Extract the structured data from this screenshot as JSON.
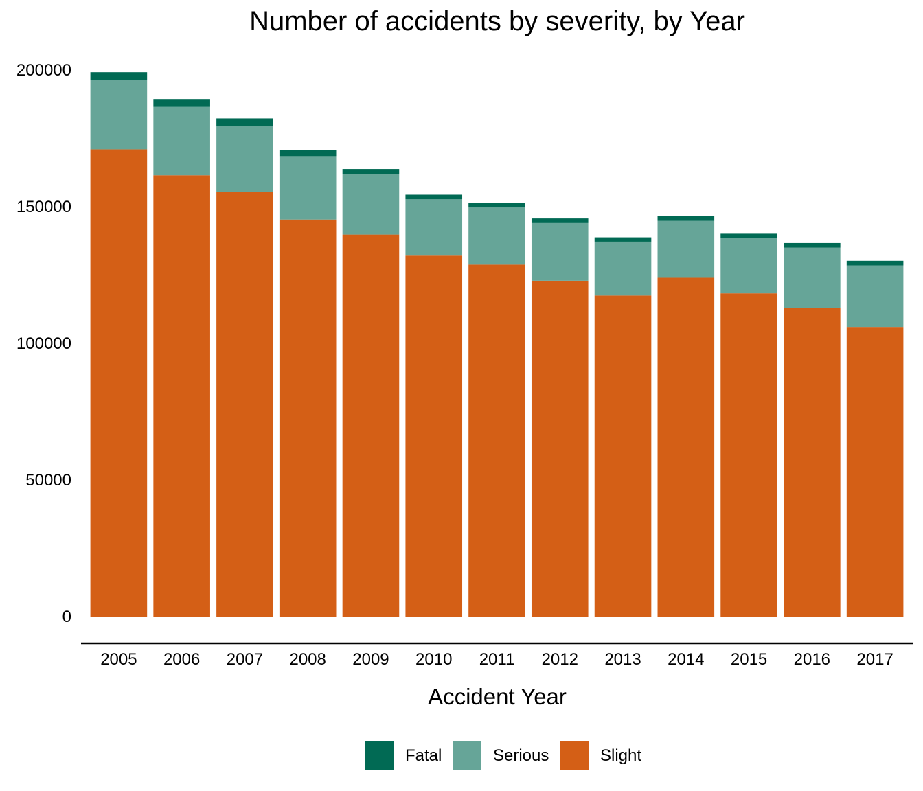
{
  "chart_data": {
    "type": "bar",
    "stacked": true,
    "title": "Number of accidents by severity, by Year",
    "xlabel": "Accident Year",
    "ylabel": "",
    "ylim": [
      0,
      200000
    ],
    "yticks": [
      0,
      50000,
      100000,
      150000,
      200000
    ],
    "ytick_labels": [
      "0",
      "50000",
      "100000",
      "150000",
      "200000"
    ],
    "grid": false,
    "legend_position": "bottom",
    "categories": [
      "2005",
      "2006",
      "2007",
      "2008",
      "2009",
      "2010",
      "2011",
      "2012",
      "2013",
      "2014",
      "2015",
      "2016",
      "2017"
    ],
    "series": [
      {
        "name": "Slight",
        "color": "#D45F16",
        "values": [
          171000,
          161500,
          155500,
          145300,
          139800,
          132100,
          128800,
          122900,
          117500,
          124000,
          118300,
          113000,
          106000
        ]
      },
      {
        "name": "Serious",
        "color": "#66A598",
        "values": [
          25300,
          25000,
          24100,
          23200,
          22000,
          20600,
          20900,
          21100,
          19700,
          20800,
          20200,
          22000,
          22500
        ]
      },
      {
        "name": "Fatal",
        "color": "#016A54",
        "values": [
          2900,
          2900,
          2700,
          2300,
          2000,
          1700,
          1700,
          1700,
          1600,
          1700,
          1600,
          1700,
          1700
        ]
      }
    ]
  },
  "legend": {
    "items": [
      {
        "label": "Fatal",
        "color": "#016A54"
      },
      {
        "label": "Serious",
        "color": "#66A598"
      },
      {
        "label": "Slight",
        "color": "#D45F16"
      }
    ]
  }
}
